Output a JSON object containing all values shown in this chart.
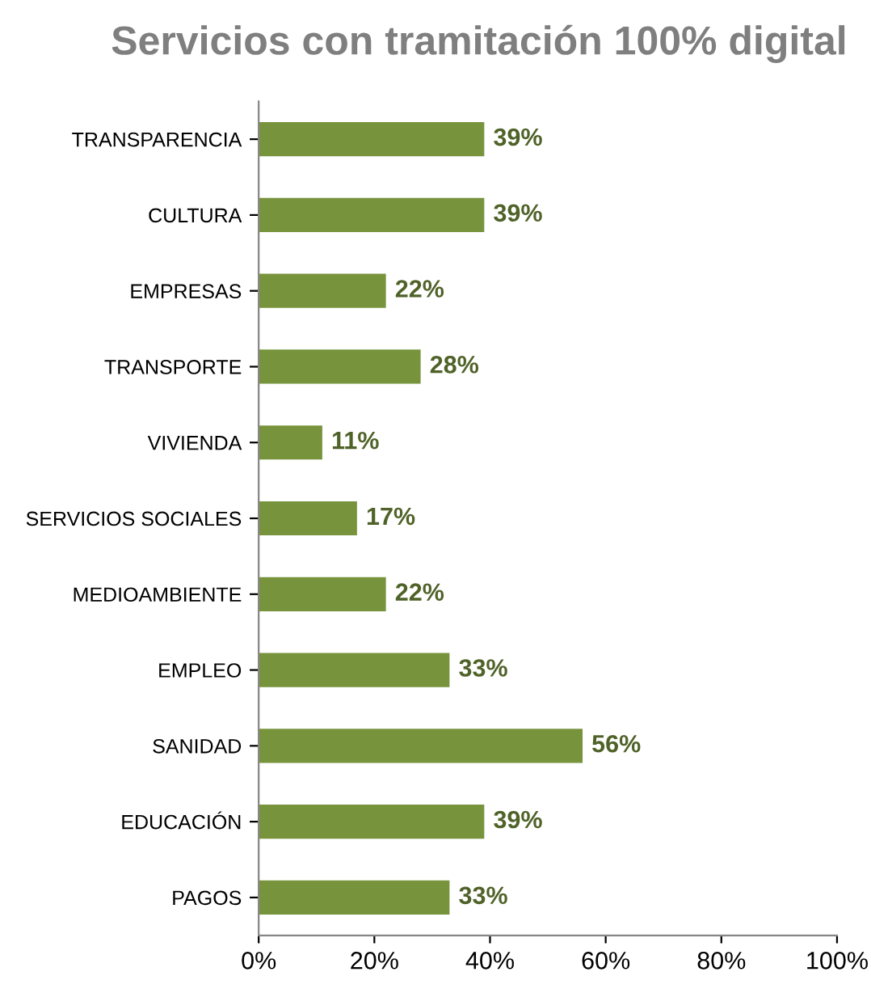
{
  "chart_data": {
    "type": "bar",
    "orientation": "horizontal",
    "title": "Servicios con tramitación 100% digital",
    "categories": [
      "TRANSPARENCIA",
      "CULTURA",
      "EMPRESAS",
      "TRANSPORTE",
      "VIVIENDA",
      "SERVICIOS SOCIALES",
      "MEDIOAMBIENTE",
      "EMPLEO",
      "SANIDAD",
      "EDUCACIÓN",
      "PAGOS"
    ],
    "values": [
      39,
      39,
      22,
      28,
      11,
      17,
      22,
      33,
      56,
      39,
      33
    ],
    "value_labels": [
      "39%",
      "39%",
      "22%",
      "28%",
      "11%",
      "17%",
      "22%",
      "33%",
      "56%",
      "39%",
      "33%"
    ],
    "color": "#77933c",
    "xlim": [
      0,
      100
    ],
    "xticks": [
      {
        "value": 0,
        "label": "0%"
      },
      {
        "value": 20,
        "label": "20%"
      },
      {
        "value": 40,
        "label": "40%"
      },
      {
        "value": 60,
        "label": "60%"
      },
      {
        "value": 80,
        "label": "80%"
      },
      {
        "value": 100,
        "label": "100%"
      }
    ],
    "grid": false,
    "legend": false
  }
}
